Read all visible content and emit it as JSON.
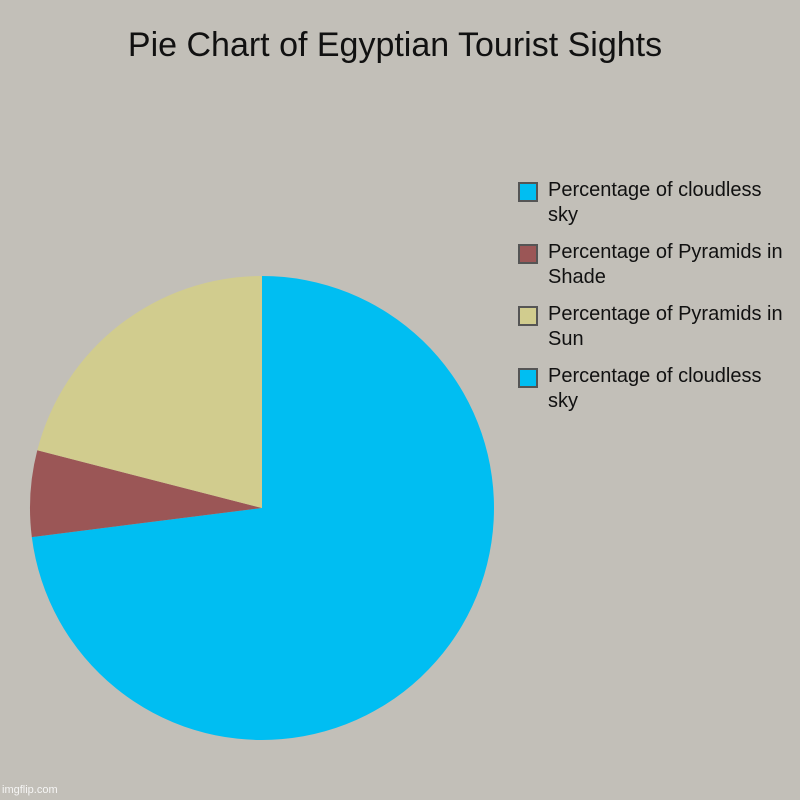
{
  "chart_data": {
    "type": "pie",
    "title": "Pie Chart of Egyptian Tourist Sights",
    "slices": [
      {
        "label": "Percentage of cloudless sky",
        "value": 73,
        "color": "#00bef2"
      },
      {
        "label": "Percentage of Pyramids in Shade",
        "value": 6,
        "color": "#9b5656"
      },
      {
        "label": "Percentage of Pyramids in Sun",
        "value": 21,
        "color": "#d1cc8e"
      },
      {
        "label": "Percentage of cloudless sky",
        "value": 0,
        "color": "#00bef2"
      }
    ],
    "legend_position": "right"
  },
  "legend": {
    "items": [
      {
        "label": "Percentage of cloudless sky",
        "color": "#00bef2"
      },
      {
        "label": "Percentage of Pyramids in Shade",
        "color": "#9b5656"
      },
      {
        "label": "Percentage of Pyramids in Sun",
        "color": "#d1cc8e"
      },
      {
        "label": "Percentage of cloudless sky",
        "color": "#00bef2"
      }
    ]
  },
  "watermark": "imgflip.com"
}
